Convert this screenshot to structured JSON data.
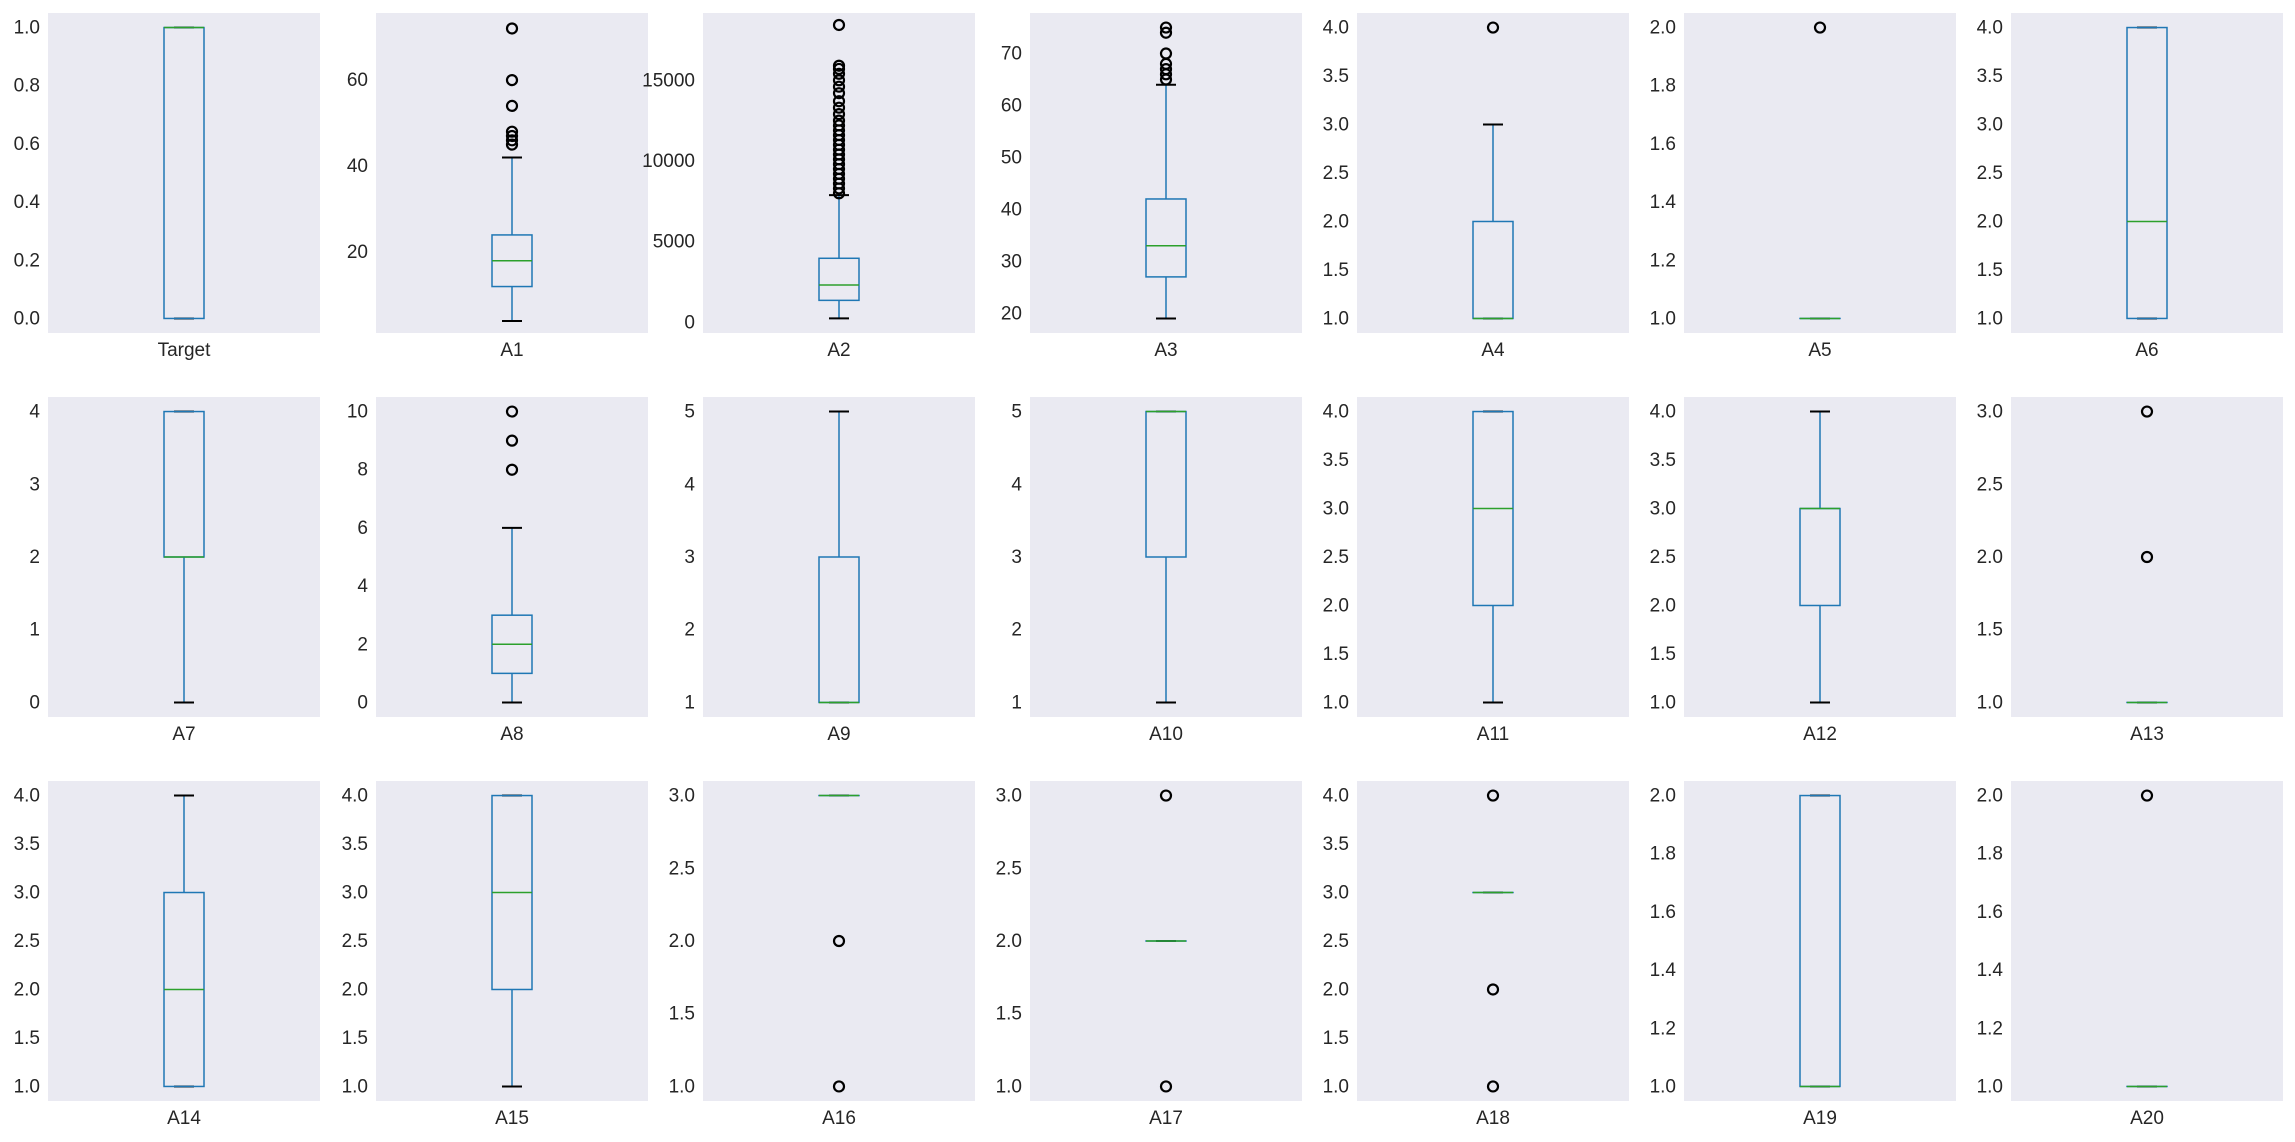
{
  "chart_data": [
    {
      "type": "box",
      "category": "Target",
      "ylim": [
        -0.05,
        1.05
      ],
      "yticks": [
        0.0,
        0.2,
        0.4,
        0.6,
        0.8,
        1.0
      ],
      "ytick_labels": [
        "0.0",
        "0.2",
        "0.4",
        "0.6",
        "0.8",
        "1.0"
      ],
      "box": {
        "whislo": 0,
        "q1": 0,
        "med": 1,
        "q3": 1,
        "whishi": 1
      },
      "outliers": []
    },
    {
      "type": "box",
      "category": "A1",
      "ylim": [
        1.2,
        75.6
      ],
      "yticks": [
        20,
        40,
        60
      ],
      "ytick_labels": [
        "20",
        "40",
        "60"
      ],
      "box": {
        "whislo": 4,
        "q1": 12,
        "med": 18,
        "q3": 24,
        "whishi": 42
      },
      "outliers": [
        45,
        46,
        47,
        48,
        54,
        60,
        72
      ]
    },
    {
      "type": "box",
      "category": "A2",
      "ylim": [
        -656,
        19166
      ],
      "yticks": [
        0,
        5000,
        10000,
        15000
      ],
      "ytick_labels": [
        "0",
        "5000",
        "10000",
        "15000"
      ],
      "box": {
        "whislo": 250,
        "q1": 1366,
        "med": 2320,
        "q3": 3972,
        "whishi": 7882
      },
      "outliers": [
        8000,
        8300,
        8600,
        8900,
        9200,
        9500,
        9800,
        10100,
        10400,
        10700,
        11000,
        11300,
        11600,
        11900,
        12200,
        12500,
        12900,
        13300,
        13700,
        14200,
        14600,
        15000,
        15400,
        15700,
        15900,
        18424
      ]
    },
    {
      "type": "box",
      "category": "A3",
      "ylim": [
        16.2,
        77.8
      ],
      "yticks": [
        20,
        30,
        40,
        50,
        60,
        70
      ],
      "ytick_labels": [
        "20",
        "30",
        "40",
        "50",
        "60",
        "70"
      ],
      "box": {
        "whislo": 19,
        "q1": 27,
        "med": 33,
        "q3": 42,
        "whishi": 64
      },
      "outliers": [
        65,
        66,
        67,
        68,
        70,
        74,
        75
      ]
    },
    {
      "type": "box",
      "category": "A4",
      "ylim": [
        0.85,
        4.15
      ],
      "yticks": [
        1.0,
        1.5,
        2.0,
        2.5,
        3.0,
        3.5,
        4.0
      ],
      "ytick_labels": [
        "1.0",
        "1.5",
        "2.0",
        "2.5",
        "3.0",
        "3.5",
        "4.0"
      ],
      "box": {
        "whislo": 1,
        "q1": 1,
        "med": 1,
        "q3": 2,
        "whishi": 3
      },
      "outliers": [
        4
      ]
    },
    {
      "type": "box",
      "category": "A5",
      "ylim": [
        0.95,
        2.05
      ],
      "yticks": [
        1.0,
        1.2,
        1.4,
        1.6,
        1.8,
        2.0
      ],
      "ytick_labels": [
        "1.0",
        "1.2",
        "1.4",
        "1.6",
        "1.8",
        "2.0"
      ],
      "box": {
        "whislo": 1,
        "q1": 1,
        "med": 1,
        "q3": 1,
        "whishi": 1
      },
      "outliers": [
        2
      ]
    },
    {
      "type": "box",
      "category": "A6",
      "ylim": [
        0.85,
        4.15
      ],
      "yticks": [
        1.0,
        1.5,
        2.0,
        2.5,
        3.0,
        3.5,
        4.0
      ],
      "ytick_labels": [
        "1.0",
        "1.5",
        "2.0",
        "2.5",
        "3.0",
        "3.5",
        "4.0"
      ],
      "box": {
        "whislo": 1,
        "q1": 1,
        "med": 2,
        "q3": 4,
        "whishi": 4
      },
      "outliers": []
    },
    {
      "type": "box",
      "category": "A7",
      "ylim": [
        -0.2,
        4.2
      ],
      "yticks": [
        0,
        1,
        2,
        3,
        4
      ],
      "ytick_labels": [
        "0",
        "1",
        "2",
        "3",
        "4"
      ],
      "box": {
        "whislo": 0,
        "q1": 2,
        "med": 2,
        "q3": 4,
        "whishi": 4
      },
      "outliers": []
    },
    {
      "type": "box",
      "category": "A8",
      "ylim": [
        -0.5,
        10.5
      ],
      "yticks": [
        0,
        2,
        4,
        6,
        8,
        10
      ],
      "ytick_labels": [
        "0",
        "2",
        "4",
        "6",
        "8",
        "10"
      ],
      "box": {
        "whislo": 0,
        "q1": 1,
        "med": 2,
        "q3": 3,
        "whishi": 6
      },
      "outliers": [
        8,
        9,
        10
      ]
    },
    {
      "type": "box",
      "category": "A9",
      "ylim": [
        0.8,
        5.2
      ],
      "yticks": [
        1,
        2,
        3,
        4,
        5
      ],
      "ytick_labels": [
        "1",
        "2",
        "3",
        "4",
        "5"
      ],
      "box": {
        "whislo": 1,
        "q1": 1,
        "med": 1,
        "q3": 3,
        "whishi": 5
      },
      "outliers": []
    },
    {
      "type": "box",
      "category": "A10",
      "ylim": [
        0.8,
        5.2
      ],
      "yticks": [
        1,
        2,
        3,
        4,
        5
      ],
      "ytick_labels": [
        "1",
        "2",
        "3",
        "4",
        "5"
      ],
      "box": {
        "whislo": 1,
        "q1": 3,
        "med": 5,
        "q3": 5,
        "whishi": 5
      },
      "outliers": []
    },
    {
      "type": "box",
      "category": "A11",
      "ylim": [
        0.85,
        4.15
      ],
      "yticks": [
        1.0,
        1.5,
        2.0,
        2.5,
        3.0,
        3.5,
        4.0
      ],
      "ytick_labels": [
        "1.0",
        "1.5",
        "2.0",
        "2.5",
        "3.0",
        "3.5",
        "4.0"
      ],
      "box": {
        "whislo": 1,
        "q1": 2,
        "med": 3,
        "q3": 4,
        "whishi": 4
      },
      "outliers": []
    },
    {
      "type": "box",
      "category": "A12",
      "ylim": [
        0.85,
        4.15
      ],
      "yticks": [
        1.0,
        1.5,
        2.0,
        2.5,
        3.0,
        3.5,
        4.0
      ],
      "ytick_labels": [
        "1.0",
        "1.5",
        "2.0",
        "2.5",
        "3.0",
        "3.5",
        "4.0"
      ],
      "box": {
        "whislo": 1,
        "q1": 2,
        "med": 3,
        "q3": 3,
        "whishi": 4
      },
      "outliers": []
    },
    {
      "type": "box",
      "category": "A13",
      "ylim": [
        0.9,
        3.1
      ],
      "yticks": [
        1.0,
        1.5,
        2.0,
        2.5,
        3.0
      ],
      "ytick_labels": [
        "1.0",
        "1.5",
        "2.0",
        "2.5",
        "3.0"
      ],
      "box": {
        "whislo": 1,
        "q1": 1,
        "med": 1,
        "q3": 1,
        "whishi": 1
      },
      "outliers": [
        2,
        3
      ]
    },
    {
      "type": "box",
      "category": "A14",
      "ylim": [
        0.85,
        4.15
      ],
      "yticks": [
        1.0,
        1.5,
        2.0,
        2.5,
        3.0,
        3.5,
        4.0
      ],
      "ytick_labels": [
        "1.0",
        "1.5",
        "2.0",
        "2.5",
        "3.0",
        "3.5",
        "4.0"
      ],
      "box": {
        "whislo": 1,
        "q1": 1,
        "med": 2,
        "q3": 3,
        "whishi": 4
      },
      "outliers": []
    },
    {
      "type": "box",
      "category": "A15",
      "ylim": [
        0.85,
        4.15
      ],
      "yticks": [
        1.0,
        1.5,
        2.0,
        2.5,
        3.0,
        3.5,
        4.0
      ],
      "ytick_labels": [
        "1.0",
        "1.5",
        "2.0",
        "2.5",
        "3.0",
        "3.5",
        "4.0"
      ],
      "box": {
        "whislo": 1,
        "q1": 2,
        "med": 3,
        "q3": 4,
        "whishi": 4
      },
      "outliers": []
    },
    {
      "type": "box",
      "category": "A16",
      "ylim": [
        0.9,
        3.1
      ],
      "yticks": [
        1.0,
        1.5,
        2.0,
        2.5,
        3.0
      ],
      "ytick_labels": [
        "1.0",
        "1.5",
        "2.0",
        "2.5",
        "3.0"
      ],
      "box": {
        "whislo": 3,
        "q1": 3,
        "med": 3,
        "q3": 3,
        "whishi": 3
      },
      "outliers": [
        1,
        2
      ]
    },
    {
      "type": "box",
      "category": "A17",
      "ylim": [
        0.9,
        3.1
      ],
      "yticks": [
        1.0,
        1.5,
        2.0,
        2.5,
        3.0
      ],
      "ytick_labels": [
        "1.0",
        "1.5",
        "2.0",
        "2.5",
        "3.0"
      ],
      "box": {
        "whislo": 2,
        "q1": 2,
        "med": 2,
        "q3": 2,
        "whishi": 2
      },
      "outliers": [
        1,
        3
      ]
    },
    {
      "type": "box",
      "category": "A18",
      "ylim": [
        0.85,
        4.15
      ],
      "yticks": [
        1.0,
        1.5,
        2.0,
        2.5,
        3.0,
        3.5,
        4.0
      ],
      "ytick_labels": [
        "1.0",
        "1.5",
        "2.0",
        "2.5",
        "3.0",
        "3.5",
        "4.0"
      ],
      "box": {
        "whislo": 3,
        "q1": 3,
        "med": 3,
        "q3": 3,
        "whishi": 3
      },
      "outliers": [
        1,
        2,
        4
      ]
    },
    {
      "type": "box",
      "category": "A19",
      "ylim": [
        0.95,
        2.05
      ],
      "yticks": [
        1.0,
        1.2,
        1.4,
        1.6,
        1.8,
        2.0
      ],
      "ytick_labels": [
        "1.0",
        "1.2",
        "1.4",
        "1.6",
        "1.8",
        "2.0"
      ],
      "box": {
        "whislo": 1,
        "q1": 1,
        "med": 1,
        "q3": 2,
        "whishi": 2
      },
      "outliers": []
    },
    {
      "type": "box",
      "category": "A20",
      "ylim": [
        0.95,
        2.05
      ],
      "yticks": [
        1.0,
        1.2,
        1.4,
        1.6,
        1.8,
        2.0
      ],
      "ytick_labels": [
        "1.0",
        "1.2",
        "1.4",
        "1.6",
        "1.8",
        "2.0"
      ],
      "box": {
        "whislo": 1,
        "q1": 1,
        "med": 1,
        "q3": 1,
        "whishi": 1
      },
      "outliers": [
        2
      ]
    }
  ],
  "style": {
    "plot_background": "#eaeaf2",
    "box_color": "#1f77b4",
    "median_color": "#2ca02c",
    "whisker_color": "#1f77b4",
    "cap_color": "#000000",
    "flier_color": "#000000",
    "text_color": "#262626",
    "grid": false
  }
}
